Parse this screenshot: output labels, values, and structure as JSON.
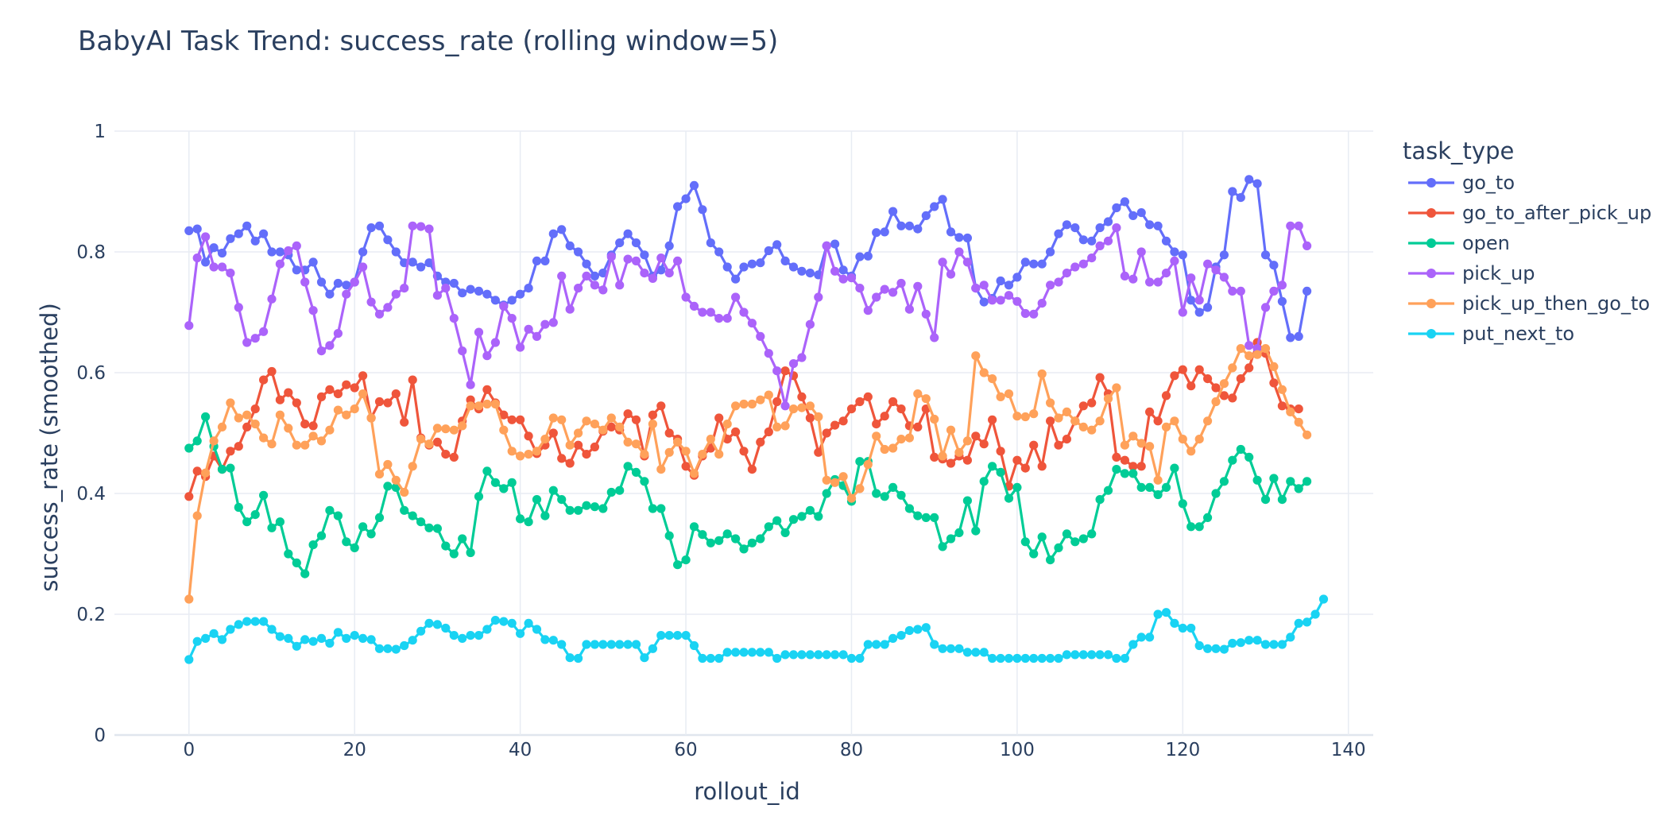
{
  "chart_data": {
    "type": "line",
    "title": "BabyAI Task Trend: success_rate (rolling window=5)",
    "xlabel": "rollout_id",
    "ylabel": "success_rate (smoothed)",
    "xlim": [
      -9,
      143
    ],
    "ylim": [
      0,
      1
    ],
    "xticks": [
      0,
      20,
      40,
      60,
      80,
      100,
      120,
      140
    ],
    "yticks": [
      0,
      0.2,
      0.4,
      0.6,
      0.8,
      1
    ],
    "ytick_labels": [
      "0",
      "0.2",
      "0.4",
      "0.6",
      "0.8",
      "1"
    ],
    "grid": true,
    "legend_title": "task_type",
    "legend_position": "right",
    "x_start": 0,
    "series": [
      {
        "name": "go_to",
        "color": "#636efa",
        "values": [
          0.835,
          0.838,
          0.783,
          0.807,
          0.798,
          0.822,
          0.83,
          0.843,
          0.818,
          0.83,
          0.8,
          0.8,
          0.795,
          0.77,
          0.77,
          0.783,
          0.75,
          0.73,
          0.748,
          0.745,
          0.75,
          0.8,
          0.84,
          0.843,
          0.82,
          0.8,
          0.782,
          0.783,
          0.775,
          0.782,
          0.76,
          0.75,
          0.748,
          0.732,
          0.738,
          0.735,
          0.73,
          0.72,
          0.712,
          0.72,
          0.73,
          0.74,
          0.785,
          0.785,
          0.83,
          0.837,
          0.81,
          0.8,
          0.78,
          0.76,
          0.765,
          0.795,
          0.815,
          0.83,
          0.815,
          0.795,
          0.76,
          0.77,
          0.81,
          0.875,
          0.888,
          0.91,
          0.87,
          0.815,
          0.8,
          0.775,
          0.755,
          0.775,
          0.78,
          0.782,
          0.802,
          0.812,
          0.785,
          0.775,
          0.768,
          0.765,
          0.762,
          0.81,
          0.813,
          0.77,
          0.76,
          0.792,
          0.793,
          0.832,
          0.833,
          0.867,
          0.843,
          0.843,
          0.838,
          0.86,
          0.875,
          0.887,
          0.833,
          0.824,
          0.823,
          0.74,
          0.717,
          0.723,
          0.752,
          0.745,
          0.758,
          0.783,
          0.78,
          0.78,
          0.8,
          0.83,
          0.845,
          0.84,
          0.82,
          0.818,
          0.84,
          0.85,
          0.873,
          0.883,
          0.86,
          0.865,
          0.845,
          0.843,
          0.818,
          0.8,
          0.795,
          0.72,
          0.7,
          0.708,
          0.775,
          0.795,
          0.9,
          0.89,
          0.92,
          0.913,
          0.795,
          0.778,
          0.718,
          0.658,
          0.66,
          0.735
        ]
      },
      {
        "name": "go_to_after_pick_up",
        "color": "#ef553b",
        "values": [
          0.395,
          0.437,
          0.428,
          0.462,
          0.44,
          0.47,
          0.478,
          0.51,
          0.54,
          0.588,
          0.602,
          0.555,
          0.567,
          0.55,
          0.515,
          0.512,
          0.56,
          0.572,
          0.565,
          0.58,
          0.575,
          0.595,
          0.525,
          0.552,
          0.55,
          0.565,
          0.518,
          0.588,
          0.492,
          0.48,
          0.485,
          0.465,
          0.46,
          0.52,
          0.555,
          0.54,
          0.572,
          0.55,
          0.53,
          0.522,
          0.522,
          0.495,
          0.466,
          0.48,
          0.5,
          0.458,
          0.45,
          0.48,
          0.465,
          0.477,
          0.503,
          0.51,
          0.505,
          0.532,
          0.522,
          0.462,
          0.53,
          0.545,
          0.5,
          0.49,
          0.445,
          0.43,
          0.462,
          0.475,
          0.525,
          0.49,
          0.502,
          0.47,
          0.44,
          0.485,
          0.502,
          0.552,
          0.603,
          0.595,
          0.56,
          0.525,
          0.468,
          0.5,
          0.513,
          0.52,
          0.54,
          0.552,
          0.56,
          0.515,
          0.528,
          0.552,
          0.54,
          0.512,
          0.51,
          0.54,
          0.46,
          0.457,
          0.45,
          0.462,
          0.455,
          0.495,
          0.482,
          0.522,
          0.47,
          0.412,
          0.455,
          0.442,
          0.48,
          0.445,
          0.52,
          0.48,
          0.49,
          0.52,
          0.545,
          0.55,
          0.592,
          0.565,
          0.46,
          0.455,
          0.445,
          0.445,
          0.535,
          0.52,
          0.562,
          0.595,
          0.605,
          0.578,
          0.605,
          0.59,
          0.575,
          0.562,
          0.558,
          0.59,
          0.608,
          0.65,
          0.632,
          0.583,
          0.545,
          0.54,
          0.54
        ]
      },
      {
        "name": "open",
        "color": "#00cc96",
        "values": [
          0.475,
          0.487,
          0.527,
          0.478,
          0.44,
          0.442,
          0.377,
          0.353,
          0.365,
          0.397,
          0.343,
          0.353,
          0.3,
          0.285,
          0.267,
          0.315,
          0.33,
          0.372,
          0.363,
          0.32,
          0.31,
          0.345,
          0.333,
          0.36,
          0.412,
          0.41,
          0.372,
          0.363,
          0.353,
          0.343,
          0.342,
          0.313,
          0.3,
          0.325,
          0.302,
          0.395,
          0.437,
          0.418,
          0.408,
          0.418,
          0.358,
          0.353,
          0.39,
          0.363,
          0.405,
          0.39,
          0.372,
          0.372,
          0.38,
          0.378,
          0.375,
          0.402,
          0.405,
          0.445,
          0.435,
          0.42,
          0.375,
          0.375,
          0.33,
          0.282,
          0.29,
          0.345,
          0.332,
          0.318,
          0.322,
          0.333,
          0.325,
          0.308,
          0.318,
          0.325,
          0.345,
          0.355,
          0.335,
          0.357,
          0.362,
          0.372,
          0.362,
          0.4,
          0.423,
          0.413,
          0.387,
          0.453,
          0.453,
          0.4,
          0.395,
          0.41,
          0.397,
          0.375,
          0.363,
          0.36,
          0.36,
          0.312,
          0.325,
          0.335,
          0.388,
          0.338,
          0.42,
          0.445,
          0.435,
          0.392,
          0.41,
          0.32,
          0.3,
          0.328,
          0.29,
          0.31,
          0.333,
          0.32,
          0.325,
          0.333,
          0.39,
          0.405,
          0.44,
          0.433,
          0.433,
          0.41,
          0.41,
          0.398,
          0.41,
          0.442,
          0.383,
          0.345,
          0.345,
          0.36,
          0.4,
          0.42,
          0.455,
          0.473,
          0.46,
          0.422,
          0.39,
          0.425,
          0.39,
          0.42,
          0.408,
          0.42
        ]
      },
      {
        "name": "pick_up",
        "color": "#ab63fa",
        "values": [
          0.678,
          0.79,
          0.825,
          0.775,
          0.775,
          0.765,
          0.708,
          0.65,
          0.657,
          0.668,
          0.722,
          0.78,
          0.802,
          0.81,
          0.75,
          0.703,
          0.636,
          0.645,
          0.665,
          0.73,
          0.75,
          0.775,
          0.717,
          0.697,
          0.708,
          0.73,
          0.74,
          0.843,
          0.842,
          0.838,
          0.728,
          0.74,
          0.69,
          0.636,
          0.58,
          0.667,
          0.628,
          0.65,
          0.71,
          0.69,
          0.642,
          0.672,
          0.66,
          0.68,
          0.683,
          0.76,
          0.705,
          0.74,
          0.76,
          0.745,
          0.737,
          0.792,
          0.745,
          0.788,
          0.785,
          0.765,
          0.756,
          0.79,
          0.765,
          0.785,
          0.725,
          0.71,
          0.7,
          0.7,
          0.69,
          0.69,
          0.725,
          0.7,
          0.682,
          0.66,
          0.632,
          0.603,
          0.545,
          0.615,
          0.625,
          0.68,
          0.725,
          0.81,
          0.768,
          0.755,
          0.757,
          0.74,
          0.703,
          0.725,
          0.738,
          0.733,
          0.748,
          0.705,
          0.743,
          0.697,
          0.658,
          0.783,
          0.763,
          0.8,
          0.783,
          0.74,
          0.745,
          0.72,
          0.72,
          0.728,
          0.718,
          0.698,
          0.697,
          0.715,
          0.745,
          0.75,
          0.765,
          0.775,
          0.78,
          0.79,
          0.81,
          0.818,
          0.84,
          0.76,
          0.755,
          0.8,
          0.75,
          0.75,
          0.765,
          0.785,
          0.7,
          0.757,
          0.72,
          0.78,
          0.77,
          0.758,
          0.735,
          0.735,
          0.645,
          0.64,
          0.708,
          0.735,
          0.745,
          0.843,
          0.843,
          0.81
        ]
      },
      {
        "name": "pick_up_then_go_to",
        "color": "#ffa15a",
        "values": [
          0.225,
          0.363,
          0.434,
          0.487,
          0.51,
          0.55,
          0.525,
          0.53,
          0.515,
          0.492,
          0.482,
          0.53,
          0.508,
          0.48,
          0.48,
          0.495,
          0.487,
          0.505,
          0.538,
          0.53,
          0.54,
          0.565,
          0.525,
          0.432,
          0.448,
          0.422,
          0.402,
          0.445,
          0.49,
          0.482,
          0.508,
          0.507,
          0.505,
          0.512,
          0.545,
          0.545,
          0.548,
          0.548,
          0.505,
          0.47,
          0.462,
          0.465,
          0.47,
          0.49,
          0.525,
          0.522,
          0.48,
          0.5,
          0.52,
          0.515,
          0.505,
          0.525,
          0.51,
          0.485,
          0.482,
          0.465,
          0.515,
          0.44,
          0.468,
          0.485,
          0.47,
          0.433,
          0.465,
          0.49,
          0.465,
          0.515,
          0.545,
          0.548,
          0.548,
          0.555,
          0.563,
          0.51,
          0.512,
          0.54,
          0.542,
          0.545,
          0.527,
          0.422,
          0.418,
          0.428,
          0.392,
          0.408,
          0.448,
          0.495,
          0.473,
          0.475,
          0.49,
          0.492,
          0.565,
          0.557,
          0.523,
          0.462,
          0.505,
          0.468,
          0.487,
          0.628,
          0.6,
          0.59,
          0.56,
          0.565,
          0.528,
          0.527,
          0.532,
          0.598,
          0.55,
          0.525,
          0.535,
          0.52,
          0.51,
          0.505,
          0.52,
          0.557,
          0.575,
          0.48,
          0.495,
          0.483,
          0.478,
          0.422,
          0.51,
          0.52,
          0.49,
          0.47,
          0.49,
          0.52,
          0.552,
          0.582,
          0.608,
          0.64,
          0.628,
          0.63,
          0.64,
          0.61,
          0.572,
          0.535,
          0.518,
          0.497
        ]
      },
      {
        "name": "put_next_to",
        "color": "#19d3f3",
        "values": [
          0.125,
          0.155,
          0.16,
          0.168,
          0.158,
          0.175,
          0.183,
          0.188,
          0.188,
          0.188,
          0.175,
          0.163,
          0.16,
          0.147,
          0.158,
          0.155,
          0.16,
          0.152,
          0.17,
          0.16,
          0.165,
          0.16,
          0.158,
          0.143,
          0.143,
          0.142,
          0.148,
          0.157,
          0.172,
          0.185,
          0.183,
          0.177,
          0.165,
          0.16,
          0.165,
          0.165,
          0.175,
          0.19,
          0.188,
          0.185,
          0.168,
          0.185,
          0.175,
          0.158,
          0.157,
          0.15,
          0.128,
          0.127,
          0.15,
          0.15,
          0.15,
          0.15,
          0.15,
          0.15,
          0.15,
          0.128,
          0.143,
          0.165,
          0.165,
          0.165,
          0.165,
          0.148,
          0.127,
          0.127,
          0.127,
          0.137,
          0.137,
          0.137,
          0.137,
          0.137,
          0.137,
          0.127,
          0.133,
          0.133,
          0.133,
          0.133,
          0.133,
          0.133,
          0.133,
          0.133,
          0.127,
          0.127,
          0.15,
          0.15,
          0.15,
          0.16,
          0.165,
          0.173,
          0.175,
          0.178,
          0.15,
          0.143,
          0.143,
          0.143,
          0.137,
          0.137,
          0.137,
          0.127,
          0.127,
          0.127,
          0.127,
          0.127,
          0.127,
          0.127,
          0.127,
          0.127,
          0.133,
          0.133,
          0.133,
          0.133,
          0.133,
          0.133,
          0.127,
          0.127,
          0.15,
          0.162,
          0.162,
          0.2,
          0.203,
          0.185,
          0.177,
          0.177,
          0.148,
          0.143,
          0.143,
          0.142,
          0.152,
          0.153,
          0.157,
          0.157,
          0.15,
          0.15,
          0.15,
          0.162,
          0.185,
          0.187,
          0.2,
          0.225
        ]
      }
    ]
  }
}
